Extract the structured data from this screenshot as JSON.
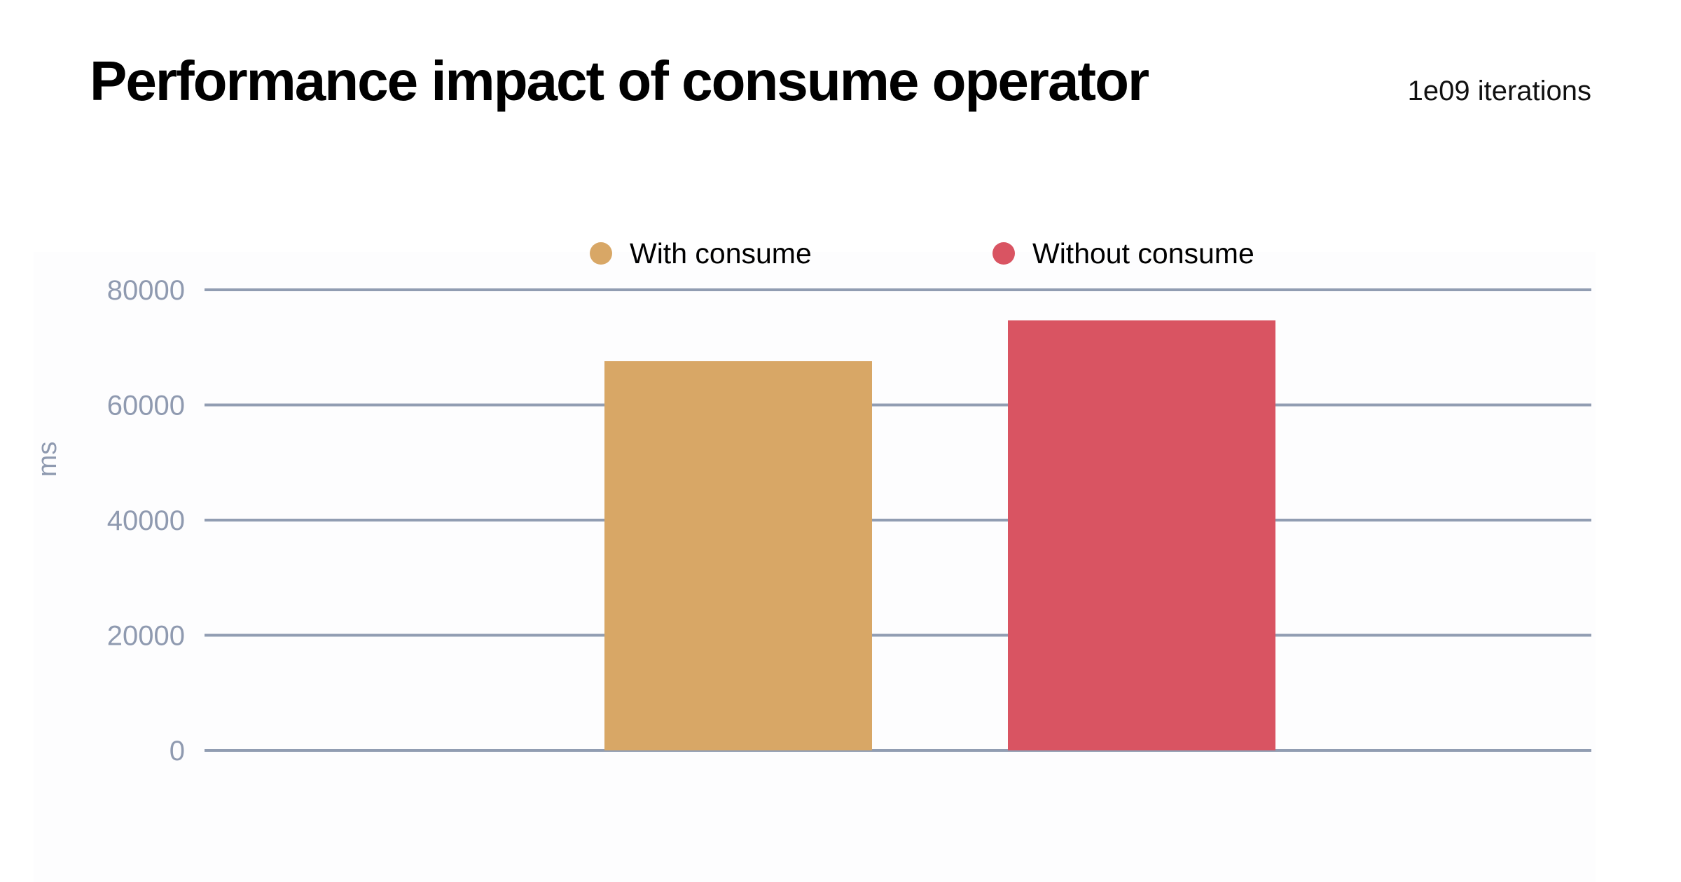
{
  "header": {
    "title": "Performance impact of consume operator",
    "subtitle": "1e09 iterations"
  },
  "chart_data": {
    "type": "bar",
    "title": "Performance impact of consume operator",
    "subtitle": "1e09 iterations",
    "xlabel": "",
    "ylabel": "ms",
    "ylim": [
      0,
      80000
    ],
    "yticks": [
      0,
      20000,
      40000,
      60000,
      80000
    ],
    "ytick_labels": [
      "0",
      "20000",
      "40000",
      "60000",
      "80000"
    ],
    "grid": true,
    "legend_position": "top-center",
    "categories": [
      ""
    ],
    "series": [
      {
        "name": "With consume",
        "color": "#d8a766",
        "values": [
          67600
        ]
      },
      {
        "name": "Without consume",
        "color": "#d95462",
        "values": [
          74700
        ]
      }
    ]
  }
}
